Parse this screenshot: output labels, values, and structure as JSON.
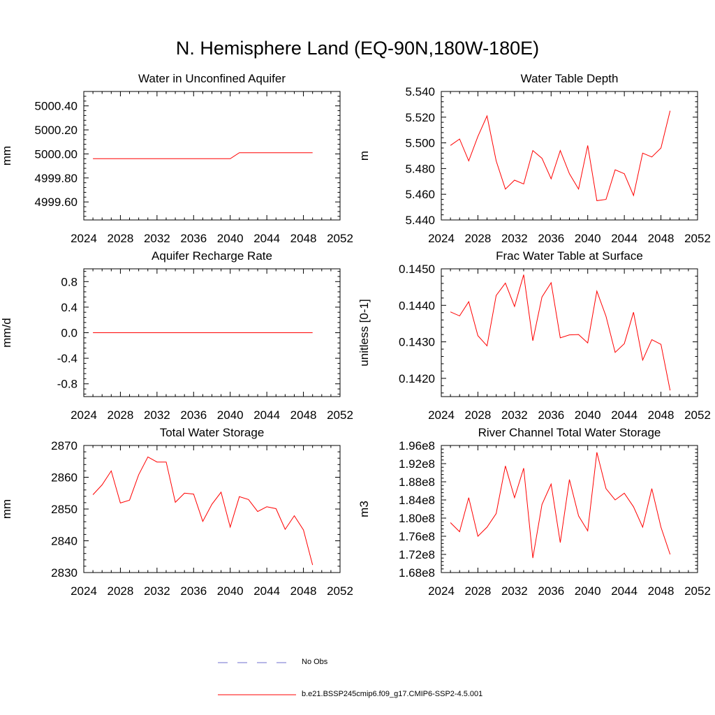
{
  "title": "N. Hemisphere Land (EQ-90N,180W-180E)",
  "legend": {
    "items": [
      {
        "label": "No Obs",
        "color": "#6f6fcf",
        "style": "dashed"
      },
      {
        "label": "b.e21.BSSP245cmip6.f09_g17.CMIP6-SSP2-4.5.001",
        "color": "#ff0000",
        "style": "solid"
      }
    ]
  },
  "chart_data": [
    {
      "type": "line",
      "title": "Water in Unconfined Aquifer",
      "ylabel": "mm",
      "xlim": [
        2024,
        2052
      ],
      "ylim": [
        4999.45,
        5000.52
      ],
      "x_ticks": [
        2024,
        2028,
        2032,
        2036,
        2040,
        2044,
        2048,
        2052
      ],
      "x_tick_labels": [
        "2024",
        "2028",
        "2032",
        "2036",
        "2040",
        "2044",
        "2048",
        "2052"
      ],
      "y_ticks": [
        4999.6,
        4999.8,
        5000.0,
        5000.2,
        5000.4
      ],
      "y_tick_labels": [
        "4999.60",
        "4999.80",
        "5000.00",
        "5000.20",
        "5000.40"
      ],
      "series": [
        {
          "color": "#ff0000",
          "x": [
            2025,
            2026,
            2027,
            2028,
            2029,
            2030,
            2031,
            2032,
            2033,
            2034,
            2035,
            2036,
            2037,
            2038,
            2039,
            2040,
            2041,
            2042,
            2043,
            2044,
            2045,
            2046,
            2047,
            2048,
            2049
          ],
          "values": [
            4999.96,
            4999.96,
            4999.96,
            4999.96,
            4999.96,
            4999.96,
            4999.96,
            4999.96,
            4999.96,
            4999.96,
            4999.96,
            4999.96,
            4999.96,
            4999.96,
            4999.96,
            4999.96,
            5000.01,
            5000.01,
            5000.01,
            5000.01,
            5000.01,
            5000.01,
            5000.01,
            5000.01,
            5000.01
          ]
        }
      ]
    },
    {
      "type": "line",
      "title": "Water Table Depth",
      "ylabel": "m",
      "xlim": [
        2024,
        2052
      ],
      "ylim": [
        5.44,
        5.54
      ],
      "x_ticks": [
        2024,
        2028,
        2032,
        2036,
        2040,
        2044,
        2048,
        2052
      ],
      "x_tick_labels": [
        "2024",
        "2028",
        "2032",
        "2036",
        "2040",
        "2044",
        "2048",
        "2052"
      ],
      "y_ticks": [
        5.44,
        5.46,
        5.48,
        5.5,
        5.52,
        5.54
      ],
      "y_tick_labels": [
        "5.440",
        "5.460",
        "5.480",
        "5.500",
        "5.520",
        "5.540"
      ],
      "series": [
        {
          "color": "#ff0000",
          "x": [
            2025,
            2026,
            2027,
            2028,
            2029,
            2030,
            2031,
            2032,
            2033,
            2034,
            2035,
            2036,
            2037,
            2038,
            2039,
            2040,
            2041,
            2042,
            2043,
            2044,
            2045,
            2046,
            2047,
            2048,
            2049
          ],
          "values": [
            5.498,
            5.503,
            5.486,
            5.505,
            5.521,
            5.486,
            5.464,
            5.471,
            5.468,
            5.494,
            5.488,
            5.472,
            5.494,
            5.476,
            5.464,
            5.498,
            5.455,
            5.456,
            5.479,
            5.476,
            5.459,
            5.492,
            5.489,
            5.496,
            5.525
          ]
        }
      ]
    },
    {
      "type": "line",
      "title": "Aquifer Recharge Rate",
      "ylabel": "mm/d",
      "xlim": [
        2024,
        2052
      ],
      "ylim": [
        -1.0,
        1.0
      ],
      "x_ticks": [
        2024,
        2028,
        2032,
        2036,
        2040,
        2044,
        2048,
        2052
      ],
      "x_tick_labels": [
        "2024",
        "2028",
        "2032",
        "2036",
        "2040",
        "2044",
        "2048",
        "2052"
      ],
      "y_ticks": [
        -0.8,
        -0.4,
        0.0,
        0.4,
        0.8
      ],
      "y_tick_labels": [
        "-0.8",
        "-0.4",
        "0.0",
        "0.4",
        "0.8"
      ],
      "series": [
        {
          "color": "#ff0000",
          "x": [
            2025,
            2026,
            2027,
            2028,
            2029,
            2030,
            2031,
            2032,
            2033,
            2034,
            2035,
            2036,
            2037,
            2038,
            2039,
            2040,
            2041,
            2042,
            2043,
            2044,
            2045,
            2046,
            2047,
            2048,
            2049
          ],
          "values": [
            0,
            0,
            0,
            0,
            0,
            0,
            0,
            0,
            0,
            0,
            0,
            0,
            0,
            0,
            0,
            0,
            0,
            0,
            0,
            0,
            0,
            0,
            0,
            0,
            0
          ]
        }
      ]
    },
    {
      "type": "line",
      "title": "Frac Water Table at Surface",
      "ylabel": "unitless [0-1]",
      "xlim": [
        2024,
        2052
      ],
      "ylim": [
        0.1415,
        0.145
      ],
      "x_ticks": [
        2024,
        2028,
        2032,
        2036,
        2040,
        2044,
        2048,
        2052
      ],
      "x_tick_labels": [
        "2024",
        "2028",
        "2032",
        "2036",
        "2040",
        "2044",
        "2048",
        "2052"
      ],
      "y_ticks": [
        0.142,
        0.143,
        0.144,
        0.145
      ],
      "y_tick_labels": [
        "0.1420",
        "0.1430",
        "0.1440",
        "0.1450"
      ],
      "series": [
        {
          "color": "#ff0000",
          "x": [
            2025,
            2026,
            2027,
            2028,
            2029,
            2030,
            2031,
            2032,
            2033,
            2034,
            2035,
            2036,
            2037,
            2038,
            2039,
            2040,
            2041,
            2042,
            2043,
            2044,
            2045,
            2046,
            2047,
            2048,
            2049
          ],
          "values": [
            0.14382,
            0.14371,
            0.1441,
            0.14317,
            0.14289,
            0.14427,
            0.14461,
            0.14397,
            0.14484,
            0.14303,
            0.14423,
            0.14462,
            0.14311,
            0.14319,
            0.1432,
            0.14297,
            0.14439,
            0.1437,
            0.14271,
            0.14295,
            0.14381,
            0.1425,
            0.14306,
            0.14293,
            0.14167
          ]
        }
      ]
    },
    {
      "type": "line",
      "title": "Total Water Storage",
      "ylabel": "mm",
      "xlim": [
        2024,
        2052
      ],
      "ylim": [
        2830,
        2870
      ],
      "x_ticks": [
        2024,
        2028,
        2032,
        2036,
        2040,
        2044,
        2048,
        2052
      ],
      "x_tick_labels": [
        "2024",
        "2028",
        "2032",
        "2036",
        "2040",
        "2044",
        "2048",
        "2052"
      ],
      "y_ticks": [
        2830,
        2840,
        2850,
        2860,
        2870
      ],
      "y_tick_labels": [
        "2830",
        "2840",
        "2850",
        "2860",
        "2870"
      ],
      "series": [
        {
          "color": "#ff0000",
          "x": [
            2025,
            2026,
            2027,
            2028,
            2029,
            2030,
            2031,
            2032,
            2033,
            2034,
            2035,
            2036,
            2037,
            2038,
            2039,
            2040,
            2041,
            2042,
            2043,
            2044,
            2045,
            2046,
            2047,
            2048,
            2049
          ],
          "values": [
            2854.5,
            2857.6,
            2862.0,
            2851.9,
            2852.8,
            2860.8,
            2866.4,
            2864.8,
            2864.8,
            2852.1,
            2855.0,
            2854.7,
            2846.1,
            2851.5,
            2855.3,
            2844.3,
            2853.9,
            2853.0,
            2849.2,
            2850.7,
            2850.1,
            2843.6,
            2847.9,
            2843.4,
            2832.4
          ]
        }
      ]
    },
    {
      "type": "line",
      "title": "River Channel Total Water Storage",
      "ylabel": "m3",
      "xlim": [
        2024,
        2052
      ],
      "ylim": [
        168000000.0,
        196000000.0
      ],
      "x_ticks": [
        2024,
        2028,
        2032,
        2036,
        2040,
        2044,
        2048,
        2052
      ],
      "x_tick_labels": [
        "2024",
        "2028",
        "2032",
        "2036",
        "2040",
        "2044",
        "2048",
        "2052"
      ],
      "y_ticks": [
        168000000.0,
        172000000.0,
        176000000.0,
        180000000.0,
        184000000.0,
        188000000.0,
        192000000.0,
        196000000.0
      ],
      "y_tick_labels": [
        "1.68e8",
        "1.72e8",
        "1.76e8",
        "1.80e8",
        "1.84e8",
        "1.88e8",
        "1.92e8",
        "1.96e8"
      ],
      "series": [
        {
          "color": "#ff0000",
          "x": [
            2025,
            2026,
            2027,
            2028,
            2029,
            2030,
            2031,
            2032,
            2033,
            2034,
            2035,
            2036,
            2037,
            2038,
            2039,
            2040,
            2041,
            2042,
            2043,
            2044,
            2045,
            2046,
            2047,
            2048,
            2049
          ],
          "values": [
            179000000.0,
            177000000.0,
            184500000.0,
            176000000.0,
            178000000.0,
            181000000.0,
            191500000.0,
            184500000.0,
            191000000.0,
            171200000.0,
            183000000.0,
            187500000.0,
            174600000.0,
            188500000.0,
            180500000.0,
            177200000.0,
            194500000.0,
            186500000.0,
            184000000.0,
            185500000.0,
            182500000.0,
            178000000.0,
            186500000.0,
            178000000.0,
            172000000.0
          ]
        }
      ]
    }
  ]
}
